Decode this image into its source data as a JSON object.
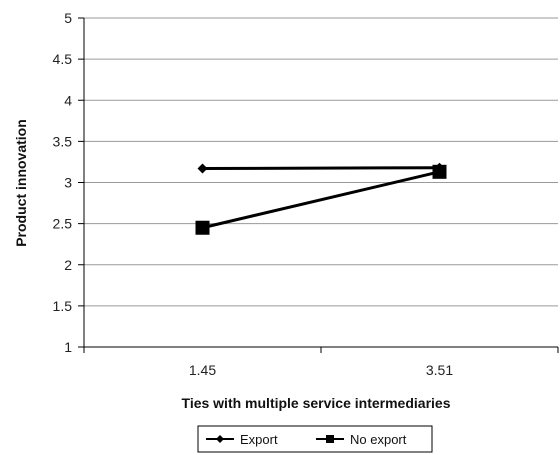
{
  "chart_data": {
    "type": "line",
    "title": "",
    "xlabel": "Ties with multiple service intermediaries",
    "ylabel": "Product innovation",
    "categories": [
      "1.45",
      "3.51"
    ],
    "ylim": [
      1,
      5
    ],
    "yticks": [
      "1",
      "1.5",
      "2",
      "2.5",
      "3",
      "3.5",
      "4",
      "4.5",
      "5"
    ],
    "grid": true,
    "legend_position": "bottom",
    "series": [
      {
        "name": "Export",
        "values": [
          3.17,
          3.18
        ],
        "marker": "diamond",
        "color": "#000000"
      },
      {
        "name": "No export",
        "values": [
          2.45,
          3.13
        ],
        "marker": "square",
        "color": "#000000"
      }
    ]
  }
}
